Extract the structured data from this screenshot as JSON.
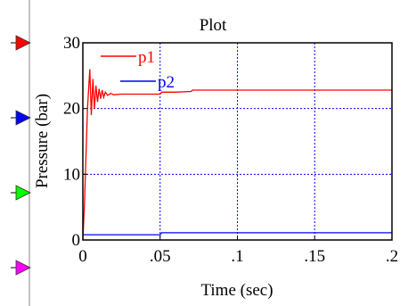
{
  "chart_data": {
    "type": "line",
    "title": "Plot",
    "xlabel": "Time (sec)",
    "ylabel": "Pressure (bar)",
    "xlim": [
      0,
      0.2
    ],
    "ylim": [
      0,
      30
    ],
    "x_tick_labels": [
      "0",
      ".05",
      ".1",
      ".15",
      ".2"
    ],
    "y_tick_labels": [
      "0",
      "10",
      "20",
      "30"
    ],
    "grid": true,
    "series": [
      {
        "name": "p1",
        "color": "#ff0000",
        "x": [
          0,
          0.001,
          0.003,
          0.0045,
          0.0055,
          0.0065,
          0.0075,
          0.0085,
          0.0095,
          0.0105,
          0.0115,
          0.0125,
          0.0135,
          0.0145,
          0.016,
          0.018,
          0.02,
          0.025,
          0.03,
          0.04,
          0.05,
          0.051,
          0.06,
          0.07,
          0.071,
          0.1,
          0.15,
          0.2
        ],
        "values": [
          0,
          5,
          20,
          26,
          19,
          24.5,
          20,
          23.5,
          21,
          23,
          21.5,
          22.8,
          21.7,
          22.5,
          22,
          22.3,
          22.1,
          22.2,
          22.2,
          22.2,
          22.2,
          22.5,
          22.5,
          22.6,
          22.8,
          22.8,
          22.8,
          22.8
        ]
      },
      {
        "name": "p2",
        "color": "#0000ff",
        "x": [
          0,
          0.05,
          0.051,
          0.1,
          0.15,
          0.2
        ],
        "values": [
          0.8,
          0.8,
          1.1,
          1.1,
          1.1,
          1.1
        ]
      }
    ]
  },
  "sidebar": {
    "markers": [
      {
        "name": "red-marker",
        "color": "#ff0000"
      },
      {
        "name": "blue-marker",
        "color": "#0000ff"
      },
      {
        "name": "green-marker",
        "color": "#00ff00"
      },
      {
        "name": "magenta-marker",
        "color": "#ff00ff"
      }
    ]
  }
}
